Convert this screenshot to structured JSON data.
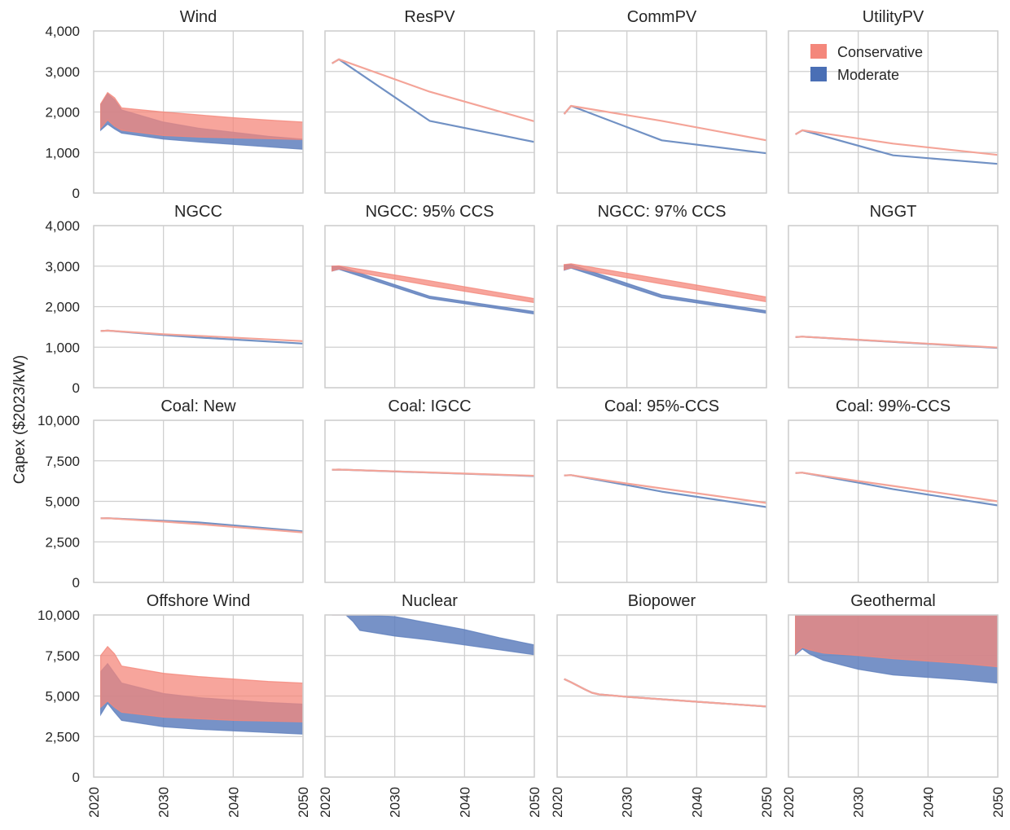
{
  "figure": {
    "ylabel": "Capex ($2023/kW)",
    "legend": {
      "placement": "top-right",
      "items": [
        {
          "label": "Conservative",
          "color": "#f4877b"
        },
        {
          "label": "Moderate",
          "color": "#4a6fb5"
        }
      ]
    }
  },
  "chart_data": [
    {
      "type": "area",
      "title": "Wind",
      "xlim": [
        2020,
        2050
      ],
      "ylim": [
        0,
        4000
      ],
      "yticks": [
        0,
        1000,
        2000,
        3000,
        4000
      ],
      "yticklabels": [
        "0",
        "1,000",
        "2,000",
        "3,000",
        "4,000"
      ],
      "xticks": [
        2020,
        2030,
        2040,
        2050
      ],
      "xticklabels": [
        "2020",
        "2030",
        "2040",
        "2050"
      ],
      "series": [
        {
          "name": "Moderate",
          "x": [
            2021,
            2022,
            2023,
            2024,
            2030,
            2035,
            2040,
            2045,
            2050
          ],
          "lower": [
            1550,
            1700,
            1580,
            1480,
            1330,
            1260,
            1200,
            1140,
            1080
          ],
          "upper": [
            2180,
            2450,
            2300,
            2050,
            1750,
            1600,
            1500,
            1400,
            1330
          ]
        },
        {
          "name": "Conservative",
          "x": [
            2021,
            2022,
            2023,
            2024,
            2030,
            2035,
            2040,
            2045,
            2050
          ],
          "lower": [
            1600,
            1800,
            1650,
            1550,
            1420,
            1380,
            1360,
            1340,
            1320
          ],
          "upper": [
            2200,
            2480,
            2350,
            2100,
            2000,
            1930,
            1860,
            1800,
            1750
          ]
        }
      ]
    },
    {
      "type": "line",
      "title": "ResPV",
      "xlim": [
        2020,
        2050
      ],
      "ylim": [
        0,
        4000
      ],
      "yticks": [
        0,
        1000,
        2000,
        3000,
        4000
      ],
      "xticks": [
        2020,
        2030,
        2040,
        2050
      ],
      "xticklabels": [
        "2020",
        "2030",
        "2040",
        "2050"
      ],
      "series": [
        {
          "name": "Moderate",
          "x": [
            2021,
            2022,
            2035,
            2050
          ],
          "y": [
            3200,
            3300,
            1780,
            1260
          ]
        },
        {
          "name": "Conservative",
          "x": [
            2021,
            2022,
            2035,
            2050
          ],
          "y": [
            3200,
            3300,
            2500,
            1770
          ]
        }
      ]
    },
    {
      "type": "line",
      "title": "CommPV",
      "xlim": [
        2020,
        2050
      ],
      "ylim": [
        0,
        4000
      ],
      "yticks": [
        0,
        1000,
        2000,
        3000,
        4000
      ],
      "xticks": [
        2020,
        2030,
        2040,
        2050
      ],
      "xticklabels": [
        "2020",
        "2030",
        "2040",
        "2050"
      ],
      "series": [
        {
          "name": "Moderate",
          "x": [
            2021,
            2022,
            2035,
            2050
          ],
          "y": [
            1950,
            2150,
            1300,
            980
          ]
        },
        {
          "name": "Conservative",
          "x": [
            2021,
            2022,
            2035,
            2050
          ],
          "y": [
            1950,
            2150,
            1780,
            1300
          ]
        }
      ]
    },
    {
      "type": "line",
      "title": "UtilityPV",
      "xlim": [
        2020,
        2050
      ],
      "ylim": [
        0,
        4000
      ],
      "yticks": [
        0,
        1000,
        2000,
        3000,
        4000
      ],
      "xticks": [
        2020,
        2030,
        2040,
        2050
      ],
      "xticklabels": [
        "2020",
        "2030",
        "2040",
        "2050"
      ],
      "series": [
        {
          "name": "Moderate",
          "x": [
            2021,
            2022,
            2035,
            2050
          ],
          "y": [
            1450,
            1550,
            930,
            720
          ]
        },
        {
          "name": "Conservative",
          "x": [
            2021,
            2022,
            2035,
            2050
          ],
          "y": [
            1450,
            1550,
            1220,
            940
          ]
        }
      ]
    },
    {
      "type": "line",
      "title": "NGCC",
      "xlim": [
        2020,
        2050
      ],
      "ylim": [
        0,
        4000
      ],
      "yticks": [
        0,
        1000,
        2000,
        3000,
        4000
      ],
      "yticklabels": [
        "0",
        "1,000",
        "2,000",
        "3,000",
        "4,000"
      ],
      "xticks": [
        2020,
        2030,
        2040,
        2050
      ],
      "xticklabels": [
        "2020",
        "2030",
        "2040",
        "2050"
      ],
      "series": [
        {
          "name": "Moderate",
          "x": [
            2021,
            2022,
            2030,
            2035,
            2050
          ],
          "y": [
            1400,
            1410,
            1300,
            1240,
            1090
          ]
        },
        {
          "name": "Conservative",
          "x": [
            2021,
            2022,
            2030,
            2035,
            2050
          ],
          "y": [
            1400,
            1410,
            1320,
            1280,
            1150
          ]
        }
      ]
    },
    {
      "type": "area",
      "title": "NGCC: 95% CCS",
      "xlim": [
        2020,
        2050
      ],
      "ylim": [
        0,
        4000
      ],
      "yticks": [
        0,
        1000,
        2000,
        3000,
        4000
      ],
      "xticks": [
        2020,
        2030,
        2040,
        2050
      ],
      "xticklabels": [
        "2020",
        "2030",
        "2040",
        "2050"
      ],
      "series": [
        {
          "name": "Moderate",
          "x": [
            2021,
            2022,
            2035,
            2050
          ],
          "lower": [
            2880,
            2920,
            2200,
            1820
          ],
          "upper": [
            3000,
            3000,
            2260,
            1880
          ]
        },
        {
          "name": "Conservative",
          "x": [
            2021,
            2022,
            2035,
            2050
          ],
          "lower": [
            2880,
            2930,
            2520,
            2100
          ],
          "upper": [
            3000,
            3010,
            2640,
            2200
          ]
        }
      ]
    },
    {
      "type": "area",
      "title": "NGCC: 97% CCS",
      "xlim": [
        2020,
        2050
      ],
      "ylim": [
        0,
        4000
      ],
      "yticks": [
        0,
        1000,
        2000,
        3000,
        4000
      ],
      "xticks": [
        2020,
        2030,
        2040,
        2050
      ],
      "xticklabels": [
        "2020",
        "2030",
        "2040",
        "2050"
      ],
      "series": [
        {
          "name": "Moderate",
          "x": [
            2021,
            2022,
            2035,
            2050
          ],
          "lower": [
            2900,
            2950,
            2220,
            1840
          ],
          "upper": [
            3030,
            3040,
            2290,
            1900
          ]
        },
        {
          "name": "Conservative",
          "x": [
            2021,
            2022,
            2035,
            2050
          ],
          "lower": [
            2910,
            2960,
            2560,
            2120
          ],
          "upper": [
            3040,
            3060,
            2680,
            2240
          ]
        }
      ]
    },
    {
      "type": "line",
      "title": "NGGT",
      "xlim": [
        2020,
        2050
      ],
      "ylim": [
        0,
        4000
      ],
      "yticks": [
        0,
        1000,
        2000,
        3000,
        4000
      ],
      "xticks": [
        2020,
        2030,
        2040,
        2050
      ],
      "xticklabels": [
        "2020",
        "2030",
        "2040",
        "2050"
      ],
      "series": [
        {
          "name": "Moderate",
          "x": [
            2021,
            2022,
            2050
          ],
          "y": [
            1250,
            1260,
            980
          ]
        },
        {
          "name": "Conservative",
          "x": [
            2021,
            2022,
            2050
          ],
          "y": [
            1250,
            1260,
            990
          ]
        }
      ]
    },
    {
      "type": "line",
      "title": "Coal: New",
      "xlim": [
        2020,
        2050
      ],
      "ylim": [
        0,
        10000
      ],
      "yticks": [
        0,
        2500,
        5000,
        7500,
        10000
      ],
      "yticklabels": [
        "0",
        "2,500",
        "5,000",
        "7,500",
        "10,000"
      ],
      "xticks": [
        2020,
        2030,
        2040,
        2050
      ],
      "xticklabels": [
        "2020",
        "2030",
        "2040",
        "2050"
      ],
      "series": [
        {
          "name": "Moderate",
          "x": [
            2021,
            2022,
            2030,
            2035,
            2050
          ],
          "y": [
            3950,
            3960,
            3800,
            3700,
            3150
          ]
        },
        {
          "name": "Conservative",
          "x": [
            2021,
            2022,
            2030,
            2035,
            2050
          ],
          "y": [
            3950,
            3960,
            3750,
            3600,
            3080
          ]
        }
      ]
    },
    {
      "type": "line",
      "title": "Coal: IGCC",
      "xlim": [
        2020,
        2050
      ],
      "ylim": [
        0,
        10000
      ],
      "yticks": [
        0,
        2500,
        5000,
        7500,
        10000
      ],
      "xticks": [
        2020,
        2030,
        2040,
        2050
      ],
      "xticklabels": [
        "2020",
        "2030",
        "2040",
        "2050"
      ],
      "series": [
        {
          "name": "Moderate",
          "x": [
            2021,
            2022,
            2050
          ],
          "y": [
            6950,
            6960,
            6560
          ]
        },
        {
          "name": "Conservative",
          "x": [
            2021,
            2022,
            2050
          ],
          "y": [
            6950,
            6960,
            6580
          ]
        }
      ]
    },
    {
      "type": "line",
      "title": "Coal: 95%-CCS",
      "xlim": [
        2020,
        2050
      ],
      "ylim": [
        0,
        10000
      ],
      "yticks": [
        0,
        2500,
        5000,
        7500,
        10000
      ],
      "xticks": [
        2020,
        2030,
        2040,
        2050
      ],
      "xticklabels": [
        "2020",
        "2030",
        "2040",
        "2050"
      ],
      "series": [
        {
          "name": "Moderate",
          "x": [
            2021,
            2022,
            2030,
            2035,
            2050
          ],
          "y": [
            6600,
            6620,
            6000,
            5600,
            4650
          ]
        },
        {
          "name": "Conservative",
          "x": [
            2021,
            2022,
            2030,
            2035,
            2050
          ],
          "y": [
            6600,
            6620,
            6100,
            5800,
            4900
          ]
        }
      ]
    },
    {
      "type": "line",
      "title": "Coal: 99%-CCS",
      "xlim": [
        2020,
        2050
      ],
      "ylim": [
        0,
        10000
      ],
      "yticks": [
        0,
        2500,
        5000,
        7500,
        10000
      ],
      "xticks": [
        2020,
        2030,
        2040,
        2050
      ],
      "xticklabels": [
        "2020",
        "2030",
        "2040",
        "2050"
      ],
      "series": [
        {
          "name": "Moderate",
          "x": [
            2021,
            2022,
            2030,
            2035,
            2050
          ],
          "y": [
            6750,
            6770,
            6150,
            5750,
            4750
          ]
        },
        {
          "name": "Conservative",
          "x": [
            2021,
            2022,
            2030,
            2035,
            2050
          ],
          "y": [
            6750,
            6770,
            6250,
            5950,
            5000
          ]
        }
      ]
    },
    {
      "type": "area",
      "title": "Offshore Wind",
      "xlim": [
        2020,
        2050
      ],
      "ylim": [
        0,
        10000
      ],
      "yticks": [
        0,
        2500,
        5000,
        7500,
        10000
      ],
      "yticklabels": [
        "0",
        "2,500",
        "5,000",
        "7,500",
        "10,000"
      ],
      "xticks": [
        2020,
        2030,
        2040,
        2050
      ],
      "xticklabels": [
        "2020",
        "2030",
        "2040",
        "2050"
      ],
      "series": [
        {
          "name": "Moderate",
          "x": [
            2021,
            2022,
            2023,
            2024,
            2030,
            2035,
            2040,
            2045,
            2050
          ],
          "lower": [
            3850,
            4550,
            4000,
            3500,
            3100,
            2950,
            2850,
            2750,
            2650
          ],
          "upper": [
            6500,
            7000,
            6400,
            5800,
            5150,
            4900,
            4750,
            4600,
            4500
          ]
        },
        {
          "name": "Conservative",
          "x": [
            2021,
            2022,
            2023,
            2024,
            2030,
            2035,
            2040,
            2045,
            2050
          ],
          "lower": [
            4300,
            4700,
            4300,
            4000,
            3700,
            3600,
            3500,
            3450,
            3400
          ],
          "upper": [
            7500,
            8050,
            7600,
            6850,
            6400,
            6200,
            6050,
            5900,
            5800
          ]
        }
      ]
    },
    {
      "type": "area",
      "title": "Nuclear",
      "xlim": [
        2020,
        2050
      ],
      "ylim": [
        0,
        10000
      ],
      "yticks": [
        0,
        2500,
        5000,
        7500,
        10000
      ],
      "xticks": [
        2020,
        2030,
        2040,
        2050
      ],
      "xticklabels": [
        "2020",
        "2030",
        "2040",
        "2050"
      ],
      "series": [
        {
          "name": "Moderate",
          "x": [
            2021,
            2022,
            2023,
            2024,
            2025,
            2030,
            2035,
            2040,
            2045,
            2050
          ],
          "lower": [
            10000,
            10000,
            10000,
            9600,
            9050,
            8700,
            8450,
            8150,
            7850,
            7550
          ],
          "upper": [
            10000,
            10000,
            10000,
            10000,
            10000,
            9900,
            9500,
            9100,
            8600,
            8150
          ]
        },
        {
          "name": "Conservative",
          "x": [
            2021,
            2050
          ],
          "lower": [
            10000,
            10000
          ],
          "upper": [
            10000,
            10000
          ]
        }
      ]
    },
    {
      "type": "line",
      "title": "Biopower",
      "xlim": [
        2020,
        2050
      ],
      "ylim": [
        0,
        10000
      ],
      "yticks": [
        0,
        2500,
        5000,
        7500,
        10000
      ],
      "xticks": [
        2020,
        2030,
        2040,
        2050
      ],
      "xticklabels": [
        "2020",
        "2030",
        "2040",
        "2050"
      ],
      "series": [
        {
          "name": "Moderate",
          "x": [
            2021,
            2022,
            2024,
            2025,
            2026,
            2030,
            2035,
            2040,
            2050
          ],
          "y": [
            6050,
            5850,
            5400,
            5200,
            5100,
            4950,
            4800,
            4650,
            4350
          ]
        },
        {
          "name": "Conservative",
          "x": [
            2021,
            2022,
            2024,
            2025,
            2026,
            2030,
            2035,
            2040,
            2050
          ],
          "y": [
            6050,
            5850,
            5400,
            5200,
            5100,
            4950,
            4800,
            4650,
            4350
          ]
        }
      ]
    },
    {
      "type": "area",
      "title": "Geothermal",
      "xlim": [
        2020,
        2050
      ],
      "ylim": [
        0,
        10000
      ],
      "yticks": [
        0,
        2500,
        5000,
        7500,
        10000
      ],
      "xticks": [
        2020,
        2030,
        2040,
        2050
      ],
      "xticklabels": [
        "2020",
        "2030",
        "2040",
        "2050"
      ],
      "series": [
        {
          "name": "Moderate",
          "x": [
            2021,
            2022,
            2023,
            2025,
            2030,
            2035,
            2040,
            2045,
            2050
          ],
          "lower": [
            7550,
            7900,
            7600,
            7200,
            6650,
            6300,
            6150,
            6000,
            5800
          ],
          "upper": [
            10000,
            10000,
            10000,
            10000,
            10000,
            10000,
            10000,
            10000,
            10000
          ]
        },
        {
          "name": "Conservative",
          "x": [
            2021,
            2022,
            2023,
            2025,
            2030,
            2035,
            2040,
            2045,
            2050
          ],
          "lower": [
            7600,
            8000,
            7850,
            7650,
            7500,
            7300,
            7150,
            7000,
            6800
          ],
          "upper": [
            10000,
            10000,
            10000,
            10000,
            10000,
            10000,
            10000,
            10000,
            10000
          ]
        }
      ]
    }
  ]
}
